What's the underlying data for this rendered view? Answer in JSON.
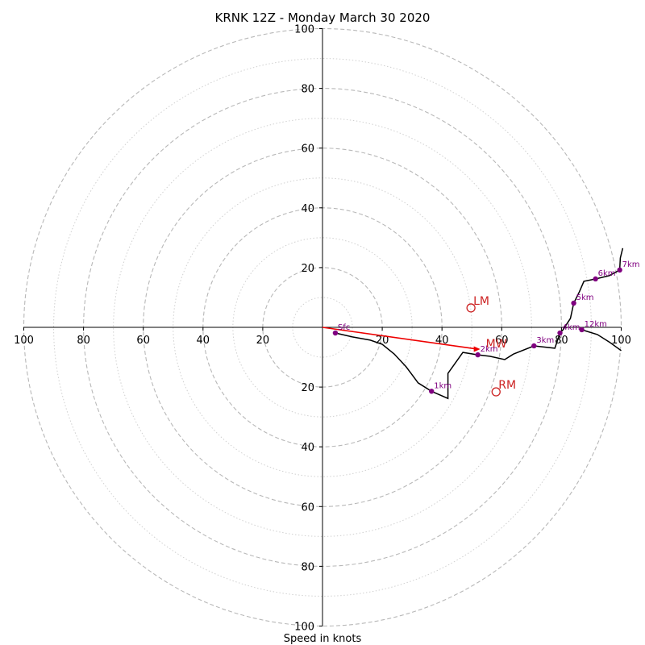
{
  "chart_data": {
    "type": "hodograph",
    "title": "KRNK 12Z - Monday March 30 2020",
    "xlabel": "Speed in knots",
    "range": [
      -100,
      100
    ],
    "ring_major": [
      20,
      40,
      60,
      80,
      100
    ],
    "ring_minor": [
      10,
      30,
      50,
      70,
      90
    ],
    "x_ticks": [
      {
        "v": -100,
        "label": "100"
      },
      {
        "v": -80,
        "label": "80"
      },
      {
        "v": -60,
        "label": "60"
      },
      {
        "v": -40,
        "label": "40"
      },
      {
        "v": -20,
        "label": "20"
      },
      {
        "v": 20,
        "label": "20"
      },
      {
        "v": 40,
        "label": "40"
      },
      {
        "v": 60,
        "label": "60"
      },
      {
        "v": 80,
        "label": "80"
      },
      {
        "v": 100,
        "label": "100"
      }
    ],
    "y_ticks": [
      {
        "v": 100,
        "label": "100"
      },
      {
        "v": 80,
        "label": "80"
      },
      {
        "v": 60,
        "label": "60"
      },
      {
        "v": 40,
        "label": "40"
      },
      {
        "v": 20,
        "label": "20"
      },
      {
        "v": -20,
        "label": "20"
      },
      {
        "v": -40,
        "label": "40"
      },
      {
        "v": -60,
        "label": "60"
      },
      {
        "v": -80,
        "label": "80"
      },
      {
        "v": -100,
        "label": "100"
      }
    ],
    "hodograph_line": [
      [
        4.3,
        -1.9
      ],
      [
        10,
        -3.2
      ],
      [
        16,
        -4.3
      ],
      [
        20,
        -5.7
      ],
      [
        24,
        -8.9
      ],
      [
        28,
        -13.2
      ],
      [
        32,
        -18.6
      ],
      [
        36.5,
        -21.4
      ],
      [
        42,
        -23.8
      ],
      [
        42,
        -20
      ],
      [
        42,
        -15.4
      ],
      [
        47,
        -8.4
      ],
      [
        52,
        -9.2
      ],
      [
        56,
        -9.7
      ],
      [
        61,
        -10.8
      ],
      [
        64,
        -8.9
      ],
      [
        70.8,
        -6.2
      ],
      [
        77.8,
        -7
      ],
      [
        79.5,
        -1.9
      ],
      [
        80.5,
        -0.8
      ],
      [
        83,
        3
      ],
      [
        84.1,
        8.1
      ],
      [
        86,
        11.9
      ],
      [
        87.5,
        15.4
      ],
      [
        91.4,
        16.2
      ],
      [
        96,
        17.3
      ],
      [
        99.5,
        19.2
      ],
      [
        99.7,
        23.2
      ],
      [
        100.5,
        26.5
      ]
    ],
    "tail_line": [
      [
        86.8,
        -0.8
      ],
      [
        92,
        -2.4
      ],
      [
        96,
        -4.9
      ],
      [
        100,
        -7.8
      ]
    ],
    "height_markers": [
      {
        "label": "Sfc",
        "x": 4.3,
        "y": -1.9
      },
      {
        "label": "1km",
        "x": 36.5,
        "y": -21.4
      },
      {
        "label": "2km",
        "x": 52,
        "y": -9.2
      },
      {
        "label": "3km",
        "x": 70.8,
        "y": -6.2
      },
      {
        "label": "4km",
        "x": 79.5,
        "y": -1.9
      },
      {
        "label": "5km",
        "x": 84.1,
        "y": 8.1
      },
      {
        "label": "6km",
        "x": 91.4,
        "y": 16.2
      },
      {
        "label": "7km",
        "x": 99.5,
        "y": 19.2
      },
      {
        "label": "12km",
        "x": 86.8,
        "y": -0.8
      }
    ],
    "storm_motions": [
      {
        "label": "LM",
        "x": 49.7,
        "y": 6.5
      },
      {
        "label": "RM",
        "x": 58.1,
        "y": -21.6
      }
    ],
    "mean_wind": {
      "label": "MW",
      "x": 52,
      "y": -7.3
    },
    "colors": {
      "hodograph": "#000000",
      "markers": "#800080",
      "mean_wind": "#ee0000",
      "storm_motion": "#cc2222",
      "grid": "#b8b8b8"
    }
  }
}
